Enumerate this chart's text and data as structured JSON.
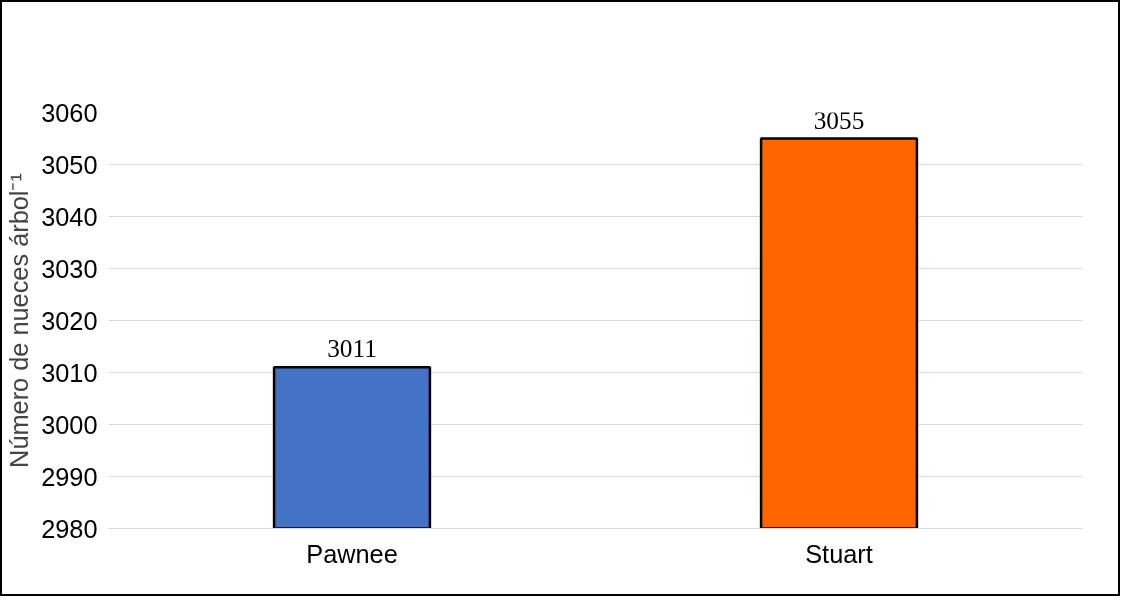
{
  "chart_data": {
    "type": "bar",
    "ylabel": "Número de nueces árbol⁻¹",
    "categories": [
      "Pawnee",
      "Stuart"
    ],
    "values": [
      3011,
      3055
    ],
    "colors": [
      "#4472c4",
      "#ff6600"
    ],
    "ylim": [
      2980,
      3060
    ],
    "yticks": [
      2980,
      2990,
      3000,
      3010,
      3020,
      3030,
      3040,
      3050,
      3060
    ],
    "grid": "y",
    "data_labels": true
  }
}
